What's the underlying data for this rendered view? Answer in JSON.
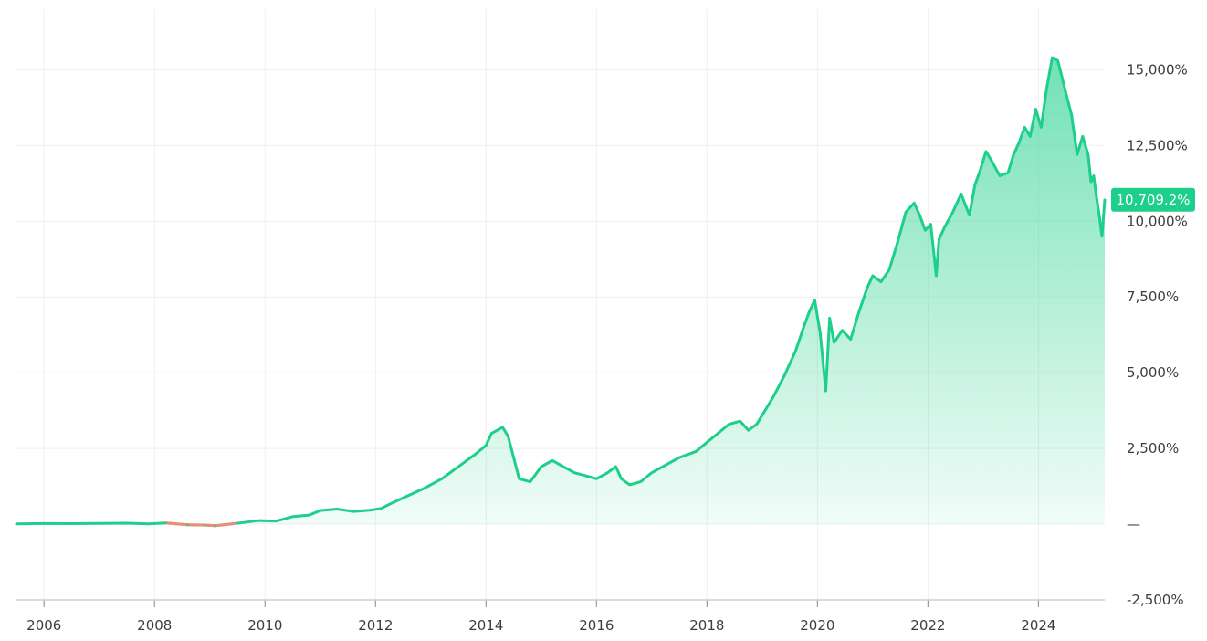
{
  "chart_data": {
    "type": "area",
    "title": "",
    "xlabel": "",
    "ylabel": "",
    "x_tick_labels": [
      "2006",
      "2008",
      "2010",
      "2012",
      "2014",
      "2016",
      "2018",
      "2020",
      "2022",
      "2024"
    ],
    "y_tick_labels": [
      "15,000%",
      "12,500%",
      "10,000%",
      "7,500%",
      "5,000%",
      "2,500%",
      "—",
      "-2,500%"
    ],
    "y_ticks": [
      15000,
      12500,
      10000,
      7500,
      5000,
      2500,
      0,
      -2500
    ],
    "xlim": [
      2005.5,
      2025.2
    ],
    "ylim": [
      -2500,
      17000
    ],
    "grid": true,
    "colors": {
      "line": "#1dcf8b",
      "negative_line": "#ef8b76",
      "fill": "#1dcf8b",
      "badge": "#1dcf8b"
    },
    "current_value_label": "10,709.2%",
    "current_value": 10709.2,
    "series": [
      {
        "x": [
          2005.5,
          2006.0,
          2006.5,
          2007.0,
          2007.5,
          2007.9,
          2008.2,
          2008.6,
          2008.9,
          2009.1,
          2009.5,
          2009.9,
          2010.2,
          2010.5,
          2010.8,
          2011.0,
          2011.3,
          2011.6,
          2011.9,
          2012.1,
          2012.3,
          2012.6,
          2012.9,
          2013.2,
          2013.5,
          2013.8,
          2014.0,
          2014.1,
          2014.3,
          2014.4,
          2014.5,
          2014.6,
          2014.8,
          2015.0,
          2015.2,
          2015.4,
          2015.6,
          2015.8,
          2016.0,
          2016.2,
          2016.35,
          2016.45,
          2016.6,
          2016.8,
          2017.0,
          2017.2,
          2017.5,
          2017.8,
          2018.0,
          2018.2,
          2018.4,
          2018.6,
          2018.75,
          2018.9,
          2019.0,
          2019.2,
          2019.4,
          2019.6,
          2019.75,
          2019.85,
          2019.95,
          2020.05,
          2020.15,
          2020.22,
          2020.3,
          2020.45,
          2020.6,
          2020.75,
          2020.9,
          2021.0,
          2021.15,
          2021.3,
          2021.45,
          2021.6,
          2021.75,
          2021.85,
          2021.95,
          2022.05,
          2022.15,
          2022.2,
          2022.3,
          2022.45,
          2022.6,
          2022.75,
          2022.85,
          2022.95,
          2023.05,
          2023.15,
          2023.3,
          2023.45,
          2023.55,
          2023.65,
          2023.75,
          2023.85,
          2023.95,
          2024.05,
          2024.15,
          2024.25,
          2024.35,
          2024.42,
          2024.5,
          2024.6,
          2024.7,
          2024.8,
          2024.9,
          2024.95,
          2025.0,
          2025.05,
          2025.1,
          2025.15,
          2025.2
        ],
        "values": [
          10,
          20,
          15,
          25,
          30,
          10,
          40,
          -20,
          -30,
          -50,
          30,
          120,
          100,
          250,
          300,
          450,
          500,
          420,
          460,
          520,
          700,
          950,
          1200,
          1500,
          1900,
          2300,
          2600,
          3000,
          3200,
          2900,
          2200,
          1500,
          1400,
          1900,
          2100,
          1900,
          1700,
          1600,
          1500,
          1700,
          1900,
          1500,
          1300,
          1400,
          1700,
          1900,
          2200,
          2400,
          2700,
          3000,
          3300,
          3400,
          3100,
          3300,
          3600,
          4200,
          4900,
          5700,
          6500,
          7000,
          7400,
          6300,
          4400,
          6800,
          6000,
          6400,
          6100,
          7000,
          7800,
          8200,
          8000,
          8400,
          9300,
          10300,
          10600,
          10200,
          9700,
          9900,
          8200,
          9400,
          9800,
          10300,
          10900,
          10200,
          11200,
          11700,
          12300,
          12000,
          11500,
          11600,
          12200,
          12600,
          13100,
          12800,
          13700,
          13100,
          14400,
          15400,
          15300,
          14800,
          14200,
          13500,
          12200,
          12800,
          12200,
          11300,
          11500,
          10800,
          10200,
          9500,
          10700
        ]
      }
    ]
  }
}
